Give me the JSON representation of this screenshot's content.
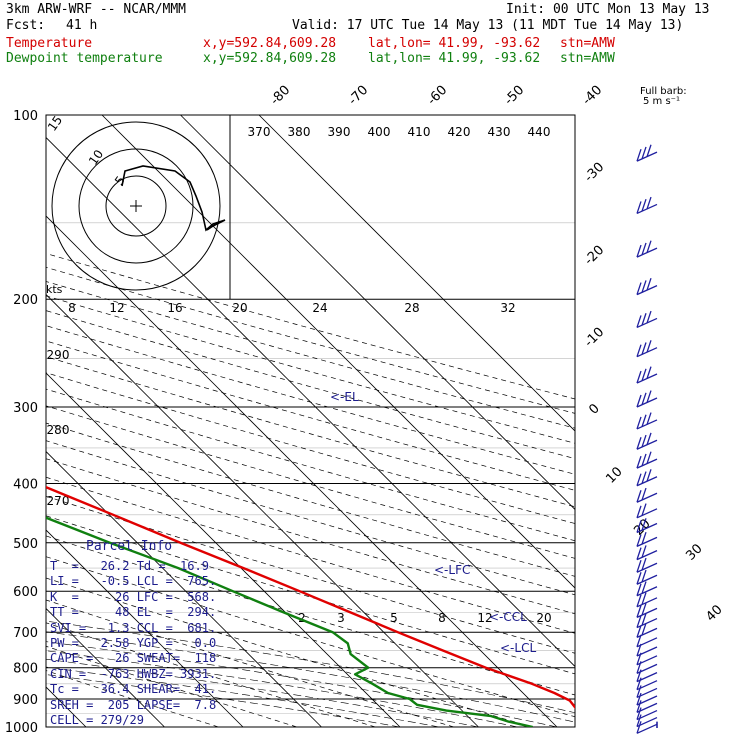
{
  "header": {
    "model": "3km ARW-WRF -- NCAR/MMM",
    "init": "Init: 00 UTC Mon 13 May 13",
    "fcst_label": "Fcst:",
    "fcst_value": "41 h",
    "valid": "Valid: 17 UTC Tue 14 May 13 (11 MDT Tue 14 May 13)",
    "temp_label": "Temperature",
    "dew_label": "Dewpoint temperature",
    "xy": "x,y=592.84,609.28",
    "latlon": "lat,lon= 41.99, -93.62",
    "stn": "stn=AMW"
  },
  "barb_legend": {
    "line1": "Full barb:",
    "line2": "5 m s⁻¹"
  },
  "hodograph": {
    "units": "kts",
    "ring_labels": [
      "5",
      "10",
      "15"
    ]
  },
  "parcel_info": {
    "title": "Parcel Info",
    "rows": [
      "T  =   26.2 Td =  16.9",
      "LI =   -0.5 LCL =  765.",
      "K  =     26 LFC =  568.",
      "TT =     48 EL  =  294.",
      "SVI =   1.3 CCL =  681.",
      "PW =   2.58 YGP =   0.0",
      "CAPE =   26 SWEAT=  118",
      "CIN =  -763 HWBZ= 3931.",
      "Tc =   36.4 SHEAR=  41.",
      "SREH =  205 LAPSE=  7.8",
      "CELL = 279/29"
    ]
  },
  "level_markers": {
    "el": "<-EL",
    "lfc": "<-LFC",
    "ccl": "<-CCL",
    "lcl": "<-LCL"
  },
  "colors": {
    "temperature": "#e00000",
    "dewpoint": "#108010",
    "barbs": "#2020a0",
    "info": "#1c1c8c"
  },
  "chart_data": {
    "type": "line",
    "subtype": "skew-T log-P",
    "y_axis": {
      "label": "pressure (hPa)",
      "scale": "log",
      "ticks": [
        100,
        200,
        300,
        400,
        500,
        600,
        700,
        800,
        900,
        1000
      ]
    },
    "isotherm_labels": [
      "-80",
      "-70",
      "-60",
      "-50",
      "-40",
      "-30",
      "-20",
      "-10",
      "0",
      "10",
      "20",
      "30",
      "40"
    ],
    "theta_labels": [
      "370",
      "380",
      "390",
      "400",
      "410",
      "420",
      "430",
      "440"
    ],
    "theta_e_labels": [
      "290",
      "280",
      "270"
    ],
    "mixing_ratio_upper": [
      "8",
      "12",
      "16",
      "20",
      "24",
      "28",
      "32"
    ],
    "mixing_ratio_lower": [
      "2",
      "3",
      "5",
      "8",
      "12",
      "20"
    ],
    "series": [
      {
        "name": "Temperature",
        "points": [
          [
            1000,
            26.2
          ],
          [
            975,
            25.2
          ],
          [
            955,
            24.8
          ],
          [
            930,
            24.8
          ],
          [
            905,
            25
          ],
          [
            880,
            24
          ],
          [
            850,
            22.3
          ],
          [
            800,
            18.5
          ],
          [
            750,
            15.2
          ],
          [
            700,
            11.8
          ],
          [
            650,
            8.3
          ],
          [
            600,
            4.5
          ],
          [
            550,
            0.3
          ],
          [
            500,
            -4.5
          ],
          [
            450,
            -9.5
          ],
          [
            400,
            -15.2
          ],
          [
            350,
            -21.8
          ],
          [
            300,
            -29.8
          ],
          [
            250,
            -39.3
          ],
          [
            200,
            -51
          ],
          [
            185,
            -55
          ],
          [
            170,
            -58.8
          ],
          [
            160,
            -59.5
          ],
          [
            145,
            -59
          ],
          [
            130,
            -58.5
          ],
          [
            120,
            -58
          ],
          [
            110,
            -57.5
          ],
          [
            100,
            -57
          ]
        ]
      },
      {
        "name": "Dewpoint temperature",
        "points": [
          [
            1000,
            16.9
          ],
          [
            980,
            14.5
          ],
          [
            960,
            13
          ],
          [
            940,
            8
          ],
          [
            920,
            5
          ],
          [
            900,
            4.8
          ],
          [
            880,
            2.8
          ],
          [
            850,
            2
          ],
          [
            820,
            1
          ],
          [
            800,
            3.5
          ],
          [
            760,
            3
          ],
          [
            730,
            4
          ],
          [
            700,
            3.5
          ],
          [
            650,
            -0.2
          ],
          [
            600,
            -4
          ],
          [
            550,
            -8
          ],
          [
            500,
            -13.5
          ],
          [
            450,
            -19
          ],
          [
            400,
            -26
          ],
          [
            350,
            -32
          ],
          [
            300,
            -38
          ],
          [
            250,
            -46
          ],
          [
            210,
            -56
          ],
          [
            195,
            -61
          ],
          [
            180,
            -63
          ],
          [
            165,
            -65
          ],
          [
            150,
            -67
          ],
          [
            135,
            -69.5
          ],
          [
            120,
            -74
          ],
          [
            110,
            -77
          ],
          [
            100,
            -80
          ]
        ]
      }
    ]
  }
}
